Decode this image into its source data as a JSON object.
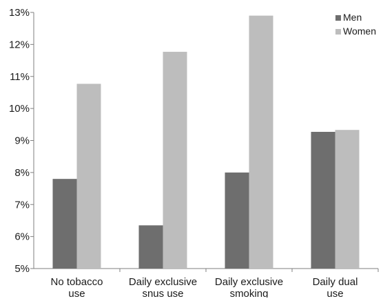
{
  "chart_data": {
    "type": "bar",
    "title": "",
    "xlabel": "",
    "ylabel": "",
    "categories": [
      [
        "No tobacco",
        "use"
      ],
      [
        "Daily exclusive",
        "snus use"
      ],
      [
        "Daily exclusive",
        "smoking"
      ],
      [
        "Daily dual",
        "use"
      ]
    ],
    "series": [
      {
        "name": "Men",
        "color": "#6e6e6e",
        "values": [
          7.8,
          6.35,
          8.0,
          9.27
        ]
      },
      {
        "name": "Women",
        "color": "#bdbdbd",
        "values": [
          10.77,
          11.77,
          12.9,
          9.33
        ]
      }
    ],
    "ylim": [
      5,
      13
    ],
    "yticks": [
      5,
      6,
      7,
      8,
      9,
      10,
      11,
      12,
      13
    ],
    "ytick_suffix": "%",
    "grid": false,
    "legend_position": "top-right"
  }
}
